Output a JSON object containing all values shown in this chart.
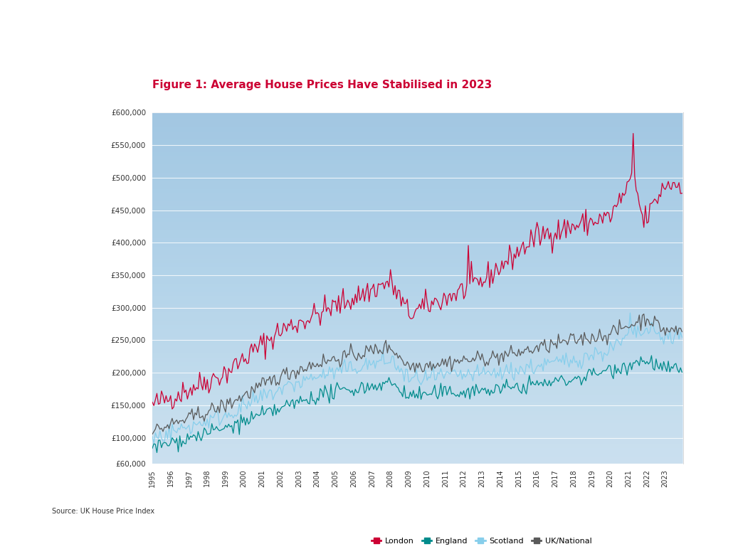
{
  "title": "Figure 1: Average House Prices Have Stabilised in 2023",
  "title_color": "#CC0033",
  "source_text": "Source: UK House Price Index",
  "legend_labels": [
    "London",
    "England",
    "Scotland",
    "UK/National"
  ],
  "legend_colors": [
    "#CC0033",
    "#008B8B",
    "#87CEEB",
    "#5a5a5a"
  ],
  "ylim": [
    60000,
    600000
  ],
  "ytick_vals": [
    60000,
    100000,
    150000,
    200000,
    250000,
    300000,
    350000,
    400000,
    450000,
    500000,
    550000,
    600000
  ],
  "ytick_labels": [
    "£60,000",
    "£100,000",
    "£150,000",
    "£200,000",
    "£250,000",
    "£300,000",
    "£350,000",
    "£400,000",
    "£450,000",
    "£500,000",
    "£550,000",
    "£600,000"
  ],
  "background_top": "#dce8f5",
  "background_bottom": "#f0f6fc",
  "fig_background": "#FFFFFF",
  "x_start_year": 1995,
  "x_end_year": 2023,
  "noise_seed": 42
}
